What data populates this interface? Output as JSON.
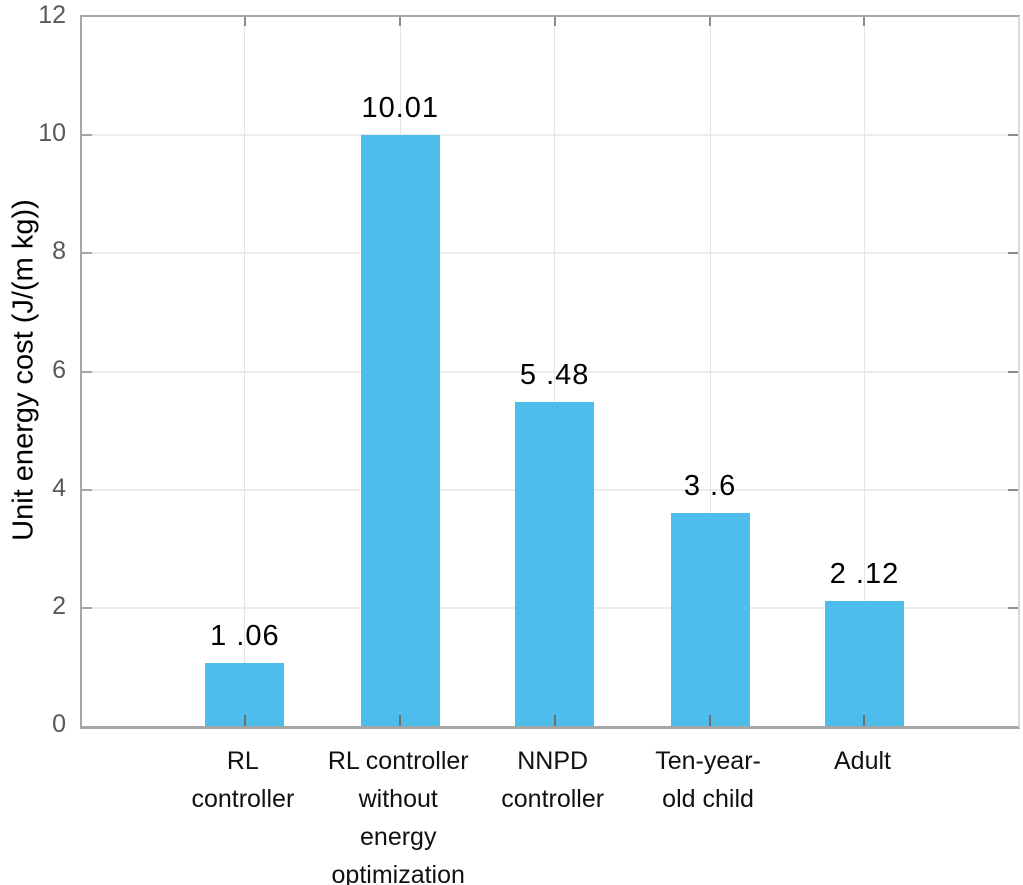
{
  "chart_data": {
    "type": "bar",
    "categories": [
      "RL controller",
      "RL controller without energy optimization",
      "NNPD controller",
      "Ten-year-old child",
      "Adult"
    ],
    "category_display": [
      "RL\ncontroller",
      "RL controller\nwithout\nenergy\noptimization",
      "NNPD\ncontroller",
      "Ten-year-\nold child",
      "Adult"
    ],
    "values": [
      1.06,
      10.01,
      5.48,
      3.6,
      2.12
    ],
    "value_labels": [
      "1 .06",
      "10.01",
      "5 .48",
      "3 .6",
      "2 .12"
    ],
    "title": "",
    "xlabel": "",
    "ylabel": "Unit energy cost (J/(m kg))",
    "ylim": [
      0,
      12
    ],
    "yticks": [
      0,
      2,
      4,
      6,
      8,
      10,
      12
    ],
    "grid": true,
    "legend_position": "none",
    "bar_color": "#4DBEEB"
  },
  "colors": {
    "bar": "#4DBEEB",
    "axis": "#A6A6A6",
    "grid_horizontal": "#ECECEC",
    "grid_vertical": "#E4E4E4",
    "tick_label": "#595959",
    "text": "#111111",
    "background": "#FFFFFF"
  }
}
